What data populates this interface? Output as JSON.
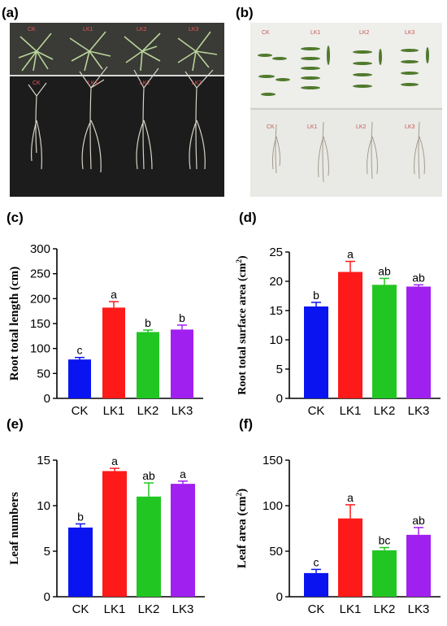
{
  "panels": {
    "a": {
      "label": "(a)",
      "top_tags": [
        "CK",
        "LK1",
        "LK2",
        "LK3"
      ],
      "bottom_tags": [
        "CK",
        "LK1",
        "LK2",
        "LK3"
      ]
    },
    "b": {
      "label": "(b)",
      "top_tags": [
        "CK",
        "LK1",
        "LK2",
        "LK3"
      ],
      "bottom_tags": [
        "CK",
        "LK1",
        "LK2",
        "LK3"
      ]
    },
    "c": {
      "label": "(c)"
    },
    "d": {
      "label": "(d)"
    },
    "e": {
      "label": "(e)"
    },
    "f": {
      "label": "(f)"
    }
  },
  "colors": {
    "CK": "#0a14f0",
    "LK1": "#ff1a1a",
    "LK2": "#22c622",
    "LK3": "#a020f0",
    "photo_a_bg": "#1a1a1a",
    "photo_b_bg": "#e8e8e4"
  },
  "chart_data": [
    {
      "id": "c",
      "type": "bar",
      "categories": [
        "CK",
        "LK1",
        "LK2",
        "LK3"
      ],
      "values": [
        78,
        182,
        133,
        138
      ],
      "errors": [
        4,
        12,
        4,
        9
      ],
      "significance": [
        "c",
        "a",
        "b",
        "b"
      ],
      "ylabel": "Root total length (cm)",
      "ylim": [
        0,
        300
      ],
      "yticks": [
        0,
        50,
        100,
        150,
        200,
        250,
        300
      ]
    },
    {
      "id": "d",
      "type": "bar",
      "categories": [
        "CK",
        "LK1",
        "LK2",
        "LK3"
      ],
      "values": [
        15.7,
        21.6,
        19.4,
        19.1
      ],
      "errors": [
        0.7,
        1.8,
        1.1,
        0.3
      ],
      "significance": [
        "b",
        "a",
        "ab",
        "ab"
      ],
      "ylabel": "Root total surface area (cm",
      "ylabel_sup": "2",
      "ylabel_end": ")",
      "ylim": [
        0,
        25
      ],
      "yticks": [
        0,
        5,
        10,
        15,
        20,
        25
      ]
    },
    {
      "id": "e",
      "type": "bar",
      "categories": [
        "CK",
        "LK1",
        "LK2",
        "LK3"
      ],
      "values": [
        7.6,
        13.8,
        11.0,
        12.4
      ],
      "errors": [
        0.4,
        0.3,
        1.5,
        0.3
      ],
      "significance": [
        "b",
        "a",
        "ab",
        "a"
      ],
      "ylabel": "Leaf numbers",
      "ylim": [
        0,
        15
      ],
      "yticks": [
        0,
        5,
        10,
        15
      ]
    },
    {
      "id": "f",
      "type": "bar",
      "categories": [
        "CK",
        "LK1",
        "LK2",
        "LK3"
      ],
      "values": [
        26,
        86,
        51,
        68
      ],
      "errors": [
        4,
        15,
        3,
        8
      ],
      "significance": [
        "c",
        "a",
        "bc",
        "ab"
      ],
      "ylabel": "Leaf area (cm",
      "ylabel_sup": "2",
      "ylabel_end": ")",
      "ylim": [
        0,
        150
      ],
      "yticks": [
        0,
        50,
        100,
        150
      ]
    }
  ]
}
